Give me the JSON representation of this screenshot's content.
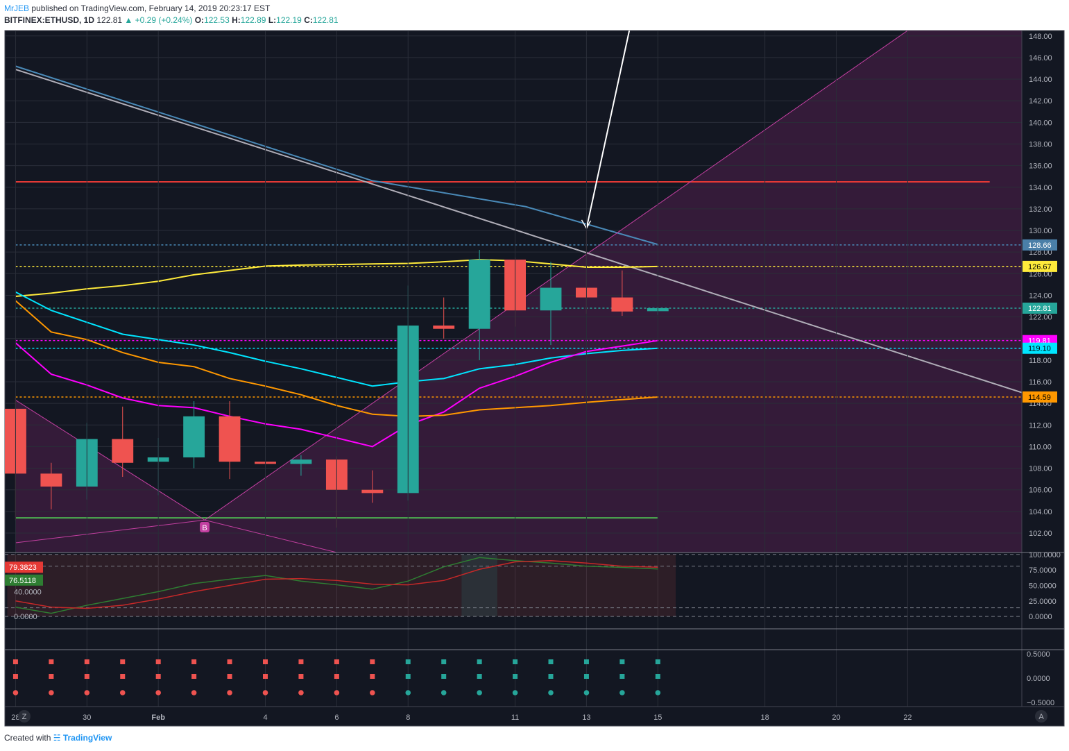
{
  "header": {
    "author": "MrJEB",
    "published": "published on TradingView.com, February 14, 2019 20:23:17 EST",
    "symbol": "BITFINEX:ETHUSD, 1D",
    "last": "122.81",
    "change": "+0.29 (+0.24%)",
    "o_label": "O:",
    "o_val": "122.53",
    "h_label": "H:",
    "h_val": "122.89",
    "l_label": "L:",
    "l_val": "122.19",
    "c_label": "C:",
    "c_val": "122.81"
  },
  "footer": {
    "created_with": "Created with",
    "brand": "TradingView"
  },
  "colors": {
    "bg": "#131722",
    "up": "#26a69a",
    "down": "#ef5350",
    "grid": "#2a2e39",
    "ema_yellow": "#ffeb3b",
    "ema_cyan": "#00e5ff",
    "ema_magenta": "#ff00ff",
    "ema_orange": "#ff9800",
    "trend_blue": "#4a8ab8",
    "trend_gray": "#b0aeb8",
    "resist_red": "#e53935",
    "support_green": "#4caf50",
    "channel": "#c23fa0"
  },
  "chart_data": {
    "type": "candlestick",
    "title": "BITFINEX:ETHUSD, 1D",
    "x_labels": [
      {
        "i": 0,
        "text": "28"
      },
      {
        "i": 2,
        "text": "30"
      },
      {
        "i": 4,
        "text": "Feb"
      },
      {
        "i": 7,
        "text": "4"
      },
      {
        "i": 9,
        "text": "6"
      },
      {
        "i": 11,
        "text": "8"
      },
      {
        "i": 14,
        "text": "11"
      },
      {
        "i": 16,
        "text": "13"
      },
      {
        "i": 18,
        "text": "15"
      },
      {
        "i": 21,
        "text": "18"
      },
      {
        "i": 23,
        "text": "20"
      },
      {
        "i": 25,
        "text": "22"
      }
    ],
    "x_range": [
      -0.3,
      28.2
    ],
    "ylim": [
      100.2,
      148.5
    ],
    "y_ticks": [
      102,
      104,
      106,
      108,
      110,
      112,
      114,
      116,
      118,
      120,
      122,
      124,
      126,
      128,
      130,
      132,
      134,
      136,
      138,
      140,
      142,
      144,
      146,
      148
    ],
    "candles": [
      {
        "o": 113.5,
        "h": 114.5,
        "l": 103.2,
        "c": 107.5
      },
      {
        "o": 107.5,
        "h": 108.5,
        "l": 104.2,
        "c": 106.3
      },
      {
        "o": 106.3,
        "h": 112.2,
        "l": 105.1,
        "c": 110.7
      },
      {
        "o": 110.7,
        "h": 113.7,
        "l": 107.2,
        "c": 108.5
      },
      {
        "o": 108.6,
        "h": 110.8,
        "l": 105.5,
        "c": 109.0
      },
      {
        "o": 109.0,
        "h": 114.2,
        "l": 108.0,
        "c": 112.8
      },
      {
        "o": 112.8,
        "h": 114.2,
        "l": 107.0,
        "c": 108.6
      },
      {
        "o": 108.6,
        "h": 110.7,
        "l": 108.1,
        "c": 108.4
      },
      {
        "o": 108.4,
        "h": 109.2,
        "l": 107.3,
        "c": 108.8
      },
      {
        "o": 108.8,
        "h": 109.1,
        "l": 102.5,
        "c": 106.0
      },
      {
        "o": 106.0,
        "h": 107.8,
        "l": 104.8,
        "c": 105.7
      },
      {
        "o": 105.7,
        "h": 124.9,
        "l": 105.0,
        "c": 121.2
      },
      {
        "o": 121.2,
        "h": 123.8,
        "l": 120.0,
        "c": 120.9
      },
      {
        "o": 120.9,
        "h": 128.2,
        "l": 118.0,
        "c": 127.3
      },
      {
        "o": 127.3,
        "h": 127.5,
        "l": 121.1,
        "c": 122.6
      },
      {
        "o": 122.6,
        "h": 127.1,
        "l": 119.4,
        "c": 124.7
      },
      {
        "o": 124.7,
        "h": 130.0,
        "l": 122.3,
        "c": 123.8
      },
      {
        "o": 123.8,
        "h": 126.3,
        "l": 122.1,
        "c": 122.5
      },
      {
        "o": 122.53,
        "h": 122.89,
        "l": 122.19,
        "c": 122.81
      }
    ],
    "series": [
      {
        "name": "EMA yellow",
        "color": "#ffeb3b",
        "values": [
          123.9,
          124.2,
          124.6,
          124.9,
          125.3,
          125.9,
          126.3,
          126.7,
          126.8,
          126.85,
          126.9,
          126.95,
          127.1,
          127.3,
          127.2,
          126.9,
          126.6,
          126.6,
          126.67
        ]
      },
      {
        "name": "EMA cyan",
        "color": "#00e5ff",
        "values": [
          124.3,
          122.6,
          121.5,
          120.4,
          119.9,
          119.4,
          118.7,
          117.9,
          117.2,
          116.4,
          115.6,
          116.0,
          116.3,
          117.2,
          117.6,
          118.2,
          118.6,
          118.9,
          119.1
        ]
      },
      {
        "name": "EMA magenta",
        "color": "#ff00ff",
        "values": [
          119.6,
          116.7,
          115.7,
          114.5,
          113.8,
          113.6,
          112.8,
          112.1,
          111.6,
          110.8,
          110.0,
          112.0,
          113.2,
          115.4,
          116.5,
          117.8,
          118.8,
          119.3,
          119.81
        ]
      },
      {
        "name": "EMA orange",
        "color": "#ff9800",
        "values": [
          123.5,
          120.6,
          119.9,
          118.7,
          117.8,
          117.4,
          116.3,
          115.6,
          114.8,
          113.8,
          113.0,
          112.8,
          112.9,
          113.4,
          113.6,
          113.8,
          114.1,
          114.35,
          114.59
        ]
      }
    ],
    "horizontal_levels": [
      {
        "name": "resistance-red",
        "price": 134.5,
        "style": "solid",
        "color": "#e53935",
        "from_i": 0,
        "to_i": 27.3
      },
      {
        "name": "level-blue",
        "price": 128.66,
        "style": "dotted",
        "color": "#4a8ab8",
        "from_i": 0,
        "to_i": 28.2
      },
      {
        "name": "level-yellow",
        "price": 126.67,
        "style": "dotted",
        "color": "#ffeb3b",
        "from_i": 0,
        "to_i": 28.2
      },
      {
        "name": "level-last",
        "price": 122.81,
        "style": "dotted",
        "color": "#26a69a",
        "from_i": 0,
        "to_i": 28.2
      },
      {
        "name": "level-magenta",
        "price": 119.81,
        "style": "dotted",
        "color": "#ff00ff",
        "from_i": 0,
        "to_i": 28.2
      },
      {
        "name": "level-cyan",
        "price": 119.1,
        "style": "dotted",
        "color": "#00e5ff",
        "from_i": 0,
        "to_i": 28.2
      },
      {
        "name": "level-orange",
        "price": 114.59,
        "style": "dotted",
        "color": "#ff9800",
        "from_i": 0,
        "to_i": 28.2
      },
      {
        "name": "support-green",
        "price": 103.4,
        "style": "solid",
        "color": "#4caf50",
        "from_i": 0,
        "to_i": 18
      }
    ],
    "trendlines": [
      {
        "name": "trend-blue",
        "color": "#4a8ab8",
        "points": [
          [
            0,
            145.2
          ],
          [
            10,
            134.6
          ],
          [
            14.3,
            132.2
          ],
          [
            18,
            128.7
          ]
        ]
      },
      {
        "name": "trend-gray",
        "color": "#b0aeb8",
        "points": [
          [
            0,
            144.9
          ],
          [
            28.2,
            115.0
          ]
        ]
      },
      {
        "name": "channel-up",
        "color": "#c23fa0",
        "points": [
          [
            5.3,
            103.2
          ],
          [
            25.0,
            148.5
          ]
        ]
      },
      {
        "name": "channel-down",
        "color": "#c23fa0",
        "points": [
          [
            0,
            114.3
          ],
          [
            5.3,
            103.2
          ],
          [
            9.0,
            100.2
          ]
        ]
      },
      {
        "name": "channel-low",
        "color": "#c23fa0",
        "points": [
          [
            0,
            101.1
          ],
          [
            5.3,
            103.2
          ]
        ]
      }
    ],
    "arrow": {
      "from": [
        17.2,
        148.5
      ],
      "to": [
        16.0,
        130.2
      ]
    },
    "marker": {
      "label": "B",
      "i": 5.3
    },
    "price_tags": [
      {
        "text": "128.66",
        "price": 128.66,
        "bg": "#4a7fa8",
        "fg": "#ffffff"
      },
      {
        "text": "126.67",
        "price": 126.67,
        "bg": "#ffeb3b",
        "fg": "#000000"
      },
      {
        "text": "122.81",
        "price": 122.81,
        "bg": "#26a69a",
        "fg": "#ffffff"
      },
      {
        "text": "119.81",
        "price": 119.81,
        "bg": "#ff00ff",
        "fg": "#ffffff"
      },
      {
        "text": "119.10",
        "price": 119.1,
        "bg": "#00e5ff",
        "fg": "#000000"
      },
      {
        "text": "114.59",
        "price": 114.59,
        "bg": "#ff9800",
        "fg": "#000000"
      }
    ],
    "stoch": {
      "ylim": [
        -20,
        102
      ],
      "y_ticks": [
        {
          "v": 100,
          "t": "100.0000"
        },
        {
          "v": 75,
          "t": "75.0000"
        },
        {
          "v": 50,
          "t": "50.0000"
        },
        {
          "v": 25,
          "t": "25.0000"
        },
        {
          "v": 0,
          "t": "0.0000"
        }
      ],
      "left_ticks": [
        {
          "v": 40,
          "t": "40.0000"
        },
        {
          "v": 0,
          "t": "0.0000"
        }
      ],
      "bands": [
        100,
        81,
        14,
        0
      ],
      "k": [
        15,
        5,
        18,
        29,
        40,
        53,
        60,
        66,
        57,
        51,
        44,
        57,
        80,
        95,
        90,
        86,
        81,
        79,
        76.5118
      ],
      "d": [
        25,
        15,
        13,
        18,
        28,
        40,
        50,
        60,
        61,
        58,
        52,
        51,
        58,
        76,
        88,
        90,
        86,
        81,
        79.3823
      ],
      "k_label": "76.5118",
      "d_label": "79.3823"
    },
    "signals": {
      "y_ticks": [
        "0.5000",
        "0.0000",
        "−0.5000"
      ],
      "colors": [
        "#ef5350",
        "#ef5350",
        "#ef5350",
        "#ef5350",
        "#ef5350",
        "#ef5350",
        "#ef5350",
        "#ef5350",
        "#ef5350",
        "#ef5350",
        "#ef5350",
        "#26a69a",
        "#26a69a",
        "#26a69a",
        "#26a69a",
        "#26a69a",
        "#26a69a",
        "#26a69a",
        "#26a69a"
      ]
    },
    "corner_labels": {
      "z": "Z",
      "a": "A"
    }
  }
}
